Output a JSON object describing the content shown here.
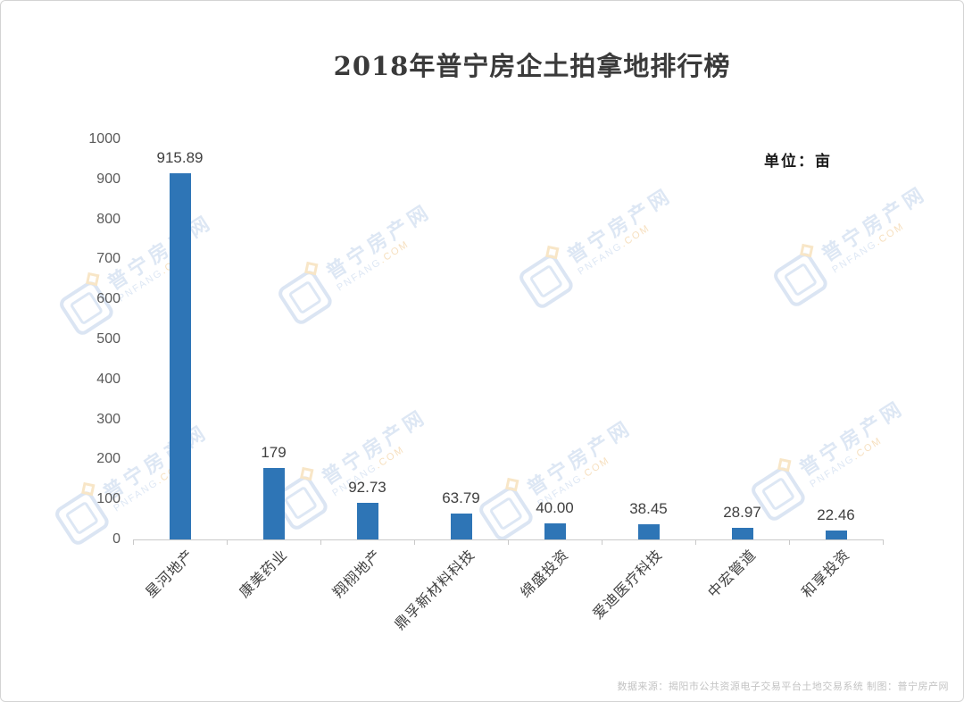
{
  "page": {
    "title": "2018年普宁房企土拍拿地排行榜",
    "unit_label": "单位：亩",
    "source_note": "数据来源：揭阳市公共资源电子交易平台土地交易系统  制图：普宁房产网"
  },
  "watermark": {
    "name": "普宁房产网",
    "domain": "PNFANG.COM"
  },
  "chart_data": {
    "type": "bar",
    "title": "2018年普宁房企土拍拿地排行榜",
    "unit": "亩",
    "categories": [
      "星河地产",
      "康美药业",
      "翔栩地产",
      "鼎孚新材料科技",
      "绵盛投资",
      "爱迪医疗科技",
      "中宏管道",
      "和享投资"
    ],
    "values": [
      915.89,
      179,
      92.73,
      63.79,
      40.0,
      38.45,
      28.97,
      22.46
    ],
    "value_labels": [
      "915.89",
      "179",
      "92.73",
      "63.79",
      "40.00",
      "38.45",
      "28.97",
      "22.46"
    ],
    "ylim": [
      0,
      1000
    ],
    "ytick_step": 100,
    "ytick_labels": [
      "0",
      "100",
      "200",
      "300",
      "400",
      "500",
      "600",
      "700",
      "800",
      "900",
      "1000"
    ],
    "bar_color": "#2E75B6",
    "grid": false,
    "legend": "none",
    "xlabel": "",
    "ylabel": ""
  }
}
